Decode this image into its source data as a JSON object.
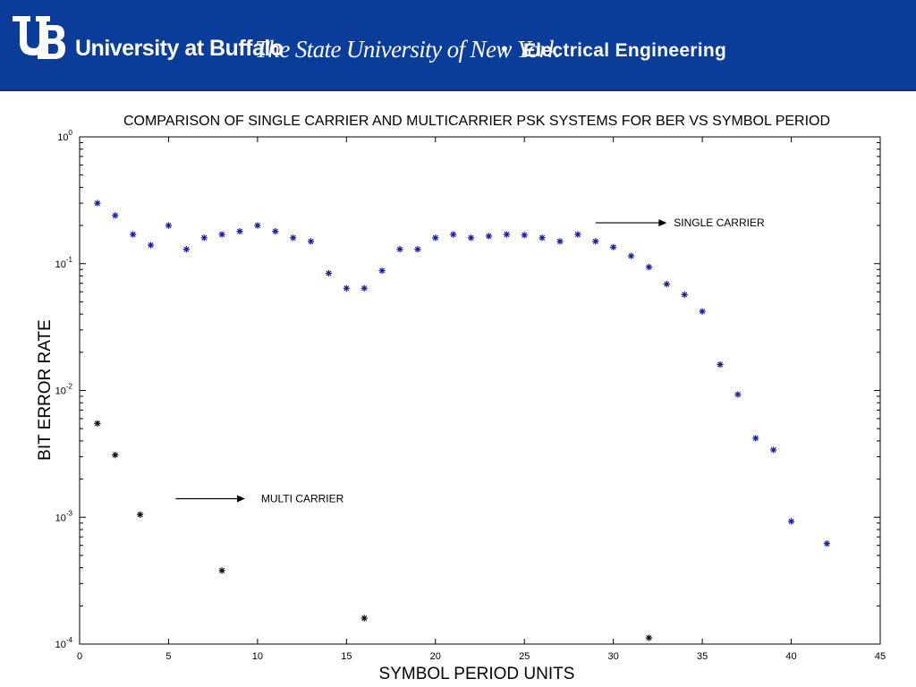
{
  "header": {
    "logo_text": "UB",
    "university": "University at Buffalo",
    "subtitle": "The State University of New York",
    "separator": "•",
    "department": "Electrical Engineering",
    "colors": {
      "banner": "#0a3c9a",
      "text": "#ffffff"
    }
  },
  "chart_data": {
    "type": "scatter",
    "title": "COMPARISON OF SINGLE CARRIER AND MULTICARRIER PSK SYSTEMS FOR BER VS SYMBOL PERIOD",
    "xlabel": "SYMBOL PERIOD UNITS",
    "ylabel": "BIT ERROR RATE",
    "xlim": [
      0,
      45
    ],
    "ylim": [
      0.0001,
      1
    ],
    "yscale": "log",
    "grid": false,
    "x_ticks": [
      0,
      5,
      10,
      15,
      20,
      25,
      30,
      35,
      40,
      45
    ],
    "y_ticks": [
      {
        "base": "10",
        "exp": "0",
        "value": 1
      },
      {
        "base": "10",
        "exp": "-1",
        "value": 0.1
      },
      {
        "base": "10",
        "exp": "-2",
        "value": 0.01
      },
      {
        "base": "10",
        "exp": "-3",
        "value": 0.001
      },
      {
        "base": "10",
        "exp": "-4",
        "value": 0.0001
      }
    ],
    "series": [
      {
        "name": "SINGLE CARRIER",
        "marker": "*",
        "color": "#1a1aa6",
        "x": [
          1,
          2,
          3,
          4,
          5,
          6,
          7,
          8,
          9,
          10,
          11,
          12,
          13,
          14,
          15,
          16,
          17,
          18,
          19,
          20,
          21,
          22,
          23,
          24,
          25,
          26,
          27,
          28,
          29,
          30,
          31,
          32,
          33,
          34,
          35,
          36,
          37,
          38,
          39,
          40,
          42
        ],
        "y": [
          0.3,
          0.24,
          0.17,
          0.14,
          0.2,
          0.13,
          0.16,
          0.17,
          0.18,
          0.2,
          0.18,
          0.16,
          0.15,
          0.084,
          0.064,
          0.064,
          0.088,
          0.13,
          0.13,
          0.16,
          0.17,
          0.16,
          0.165,
          0.17,
          0.168,
          0.16,
          0.15,
          0.17,
          0.15,
          0.135,
          0.115,
          0.094,
          0.069,
          0.057,
          0.042,
          0.016,
          0.0093,
          0.0042,
          0.0034,
          0.00093,
          0.00062
        ]
      },
      {
        "name": "MULTI CARRIER",
        "marker": "*",
        "color": "#111111",
        "x": [
          1,
          2,
          3.4,
          8,
          16,
          32
        ],
        "y": [
          0.0055,
          0.0031,
          0.00105,
          0.00038,
          0.00016,
          0.000112
        ]
      }
    ],
    "annotations": [
      {
        "text": "SINGLE CARRIER",
        "arrow_from": [
          29,
          0.21
        ],
        "arrow_to": [
          33,
          0.21
        ],
        "label_at": [
          33.4,
          0.21
        ]
      },
      {
        "text": "MULTI CARRIER",
        "arrow_from": [
          5.4,
          0.0014
        ],
        "arrow_to": [
          9.3,
          0.0014
        ],
        "label_at": [
          10.2,
          0.0014
        ]
      }
    ]
  }
}
